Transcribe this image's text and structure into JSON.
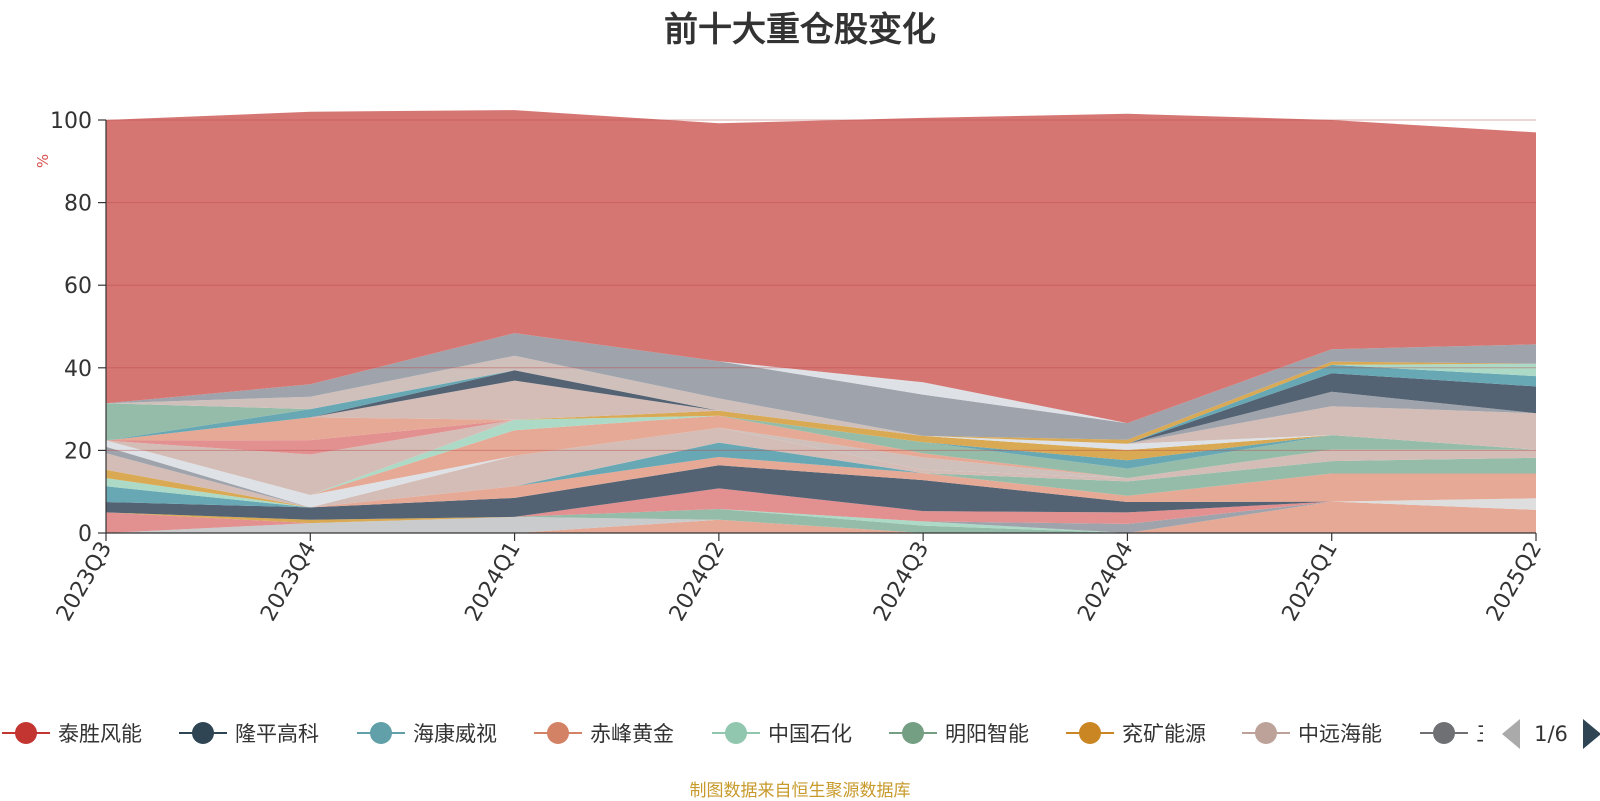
{
  "title": "前十大重仓股变化",
  "source_note": "制图数据来自恒生聚源数据库",
  "legend_pager": "1/6",
  "chart_data": {
    "type": "area",
    "stacked": true,
    "ylabel": "%",
    "ylim": [
      0,
      100
    ],
    "yticks": [
      0,
      20,
      40,
      60,
      80,
      100
    ],
    "grid": true,
    "legend_position": "bottom",
    "x": [
      "2023Q3",
      "2023Q4",
      "2024Q1",
      "2024Q2",
      "2024Q3",
      "2024Q4",
      "2025Q1",
      "2025Q2"
    ],
    "legend_visible": [
      "泰胜风能",
      "隆平高科",
      "海康威视",
      "赤峰黄金",
      "中国石化",
      "明阳智能",
      "兖矿能源",
      "中远海能",
      "三"
    ],
    "series": [
      {
        "name": "",
        "color": "#e4a48f",
        "values": [
          0,
          0,
          0,
          3.2,
          0,
          0,
          7.6,
          5.6
        ]
      },
      {
        "name": "",
        "color": "#dcdcdc",
        "values": [
          0,
          0,
          0,
          0,
          0,
          0,
          0,
          2.8
        ]
      },
      {
        "name": "",
        "color": "#c7c8c9",
        "values": [
          0,
          2.4,
          3.9,
          0,
          0,
          0,
          0,
          0
        ]
      },
      {
        "name": "",
        "color": "#8fb8a4",
        "values": [
          0,
          0,
          0,
          2.6,
          1.8,
          0,
          0,
          0
        ]
      },
      {
        "name": "",
        "color": "#a8d8c4",
        "values": [
          0,
          0,
          0,
          0,
          1.0,
          0,
          0,
          0
        ]
      },
      {
        "name": "",
        "color": "#9a9ea6",
        "values": [
          0,
          0,
          0,
          0,
          0,
          2.2,
          0,
          0
        ]
      },
      {
        "name": "",
        "color": "#e08a8a",
        "values": [
          5.0,
          0,
          0,
          5.0,
          2.5,
          2.8,
          0,
          0
        ]
      },
      {
        "name": "",
        "color": "#d8a44a",
        "values": [
          0,
          0.8,
          0,
          0,
          0,
          0,
          0,
          0
        ]
      },
      {
        "name": "",
        "color": "#4b5b6d",
        "values": [
          2.5,
          3.0,
          4.6,
          5.6,
          7.5,
          2.5,
          0,
          0
        ]
      },
      {
        "name": "",
        "color": "#e4a48f",
        "values": [
          0,
          0,
          2.8,
          2.0,
          1.7,
          1.5,
          6.8,
          6.0
        ]
      },
      {
        "name": "",
        "color": "#5fa3b0",
        "values": [
          3.8,
          0,
          0,
          3.5,
          0,
          0,
          0,
          0
        ]
      },
      {
        "name": "",
        "color": "#a8d8c4",
        "values": [
          2.0,
          0,
          0,
          0,
          0,
          0,
          0,
          0
        ]
      },
      {
        "name": "",
        "color": "#d8a44a",
        "values": [
          2.0,
          0,
          0,
          0,
          0,
          0,
          0,
          0
        ]
      },
      {
        "name": "",
        "color": "#8fb8a4",
        "values": [
          0,
          0,
          0,
          0,
          0,
          3.5,
          3.0,
          3.8
        ]
      },
      {
        "name": "",
        "color": "#d2b9b3",
        "values": [
          4.0,
          0,
          7.4,
          3.6,
          0.8,
          0.8,
          2.8,
          2.0
        ]
      },
      {
        "name": "",
        "color": "#ccbdb8",
        "values": [
          0,
          0,
          0,
          0,
          3.0,
          0,
          0,
          0
        ]
      },
      {
        "name": "",
        "color": "#9a9ea6",
        "values": [
          1.6,
          0,
          0,
          0,
          0,
          0,
          0,
          0
        ]
      },
      {
        "name": "",
        "color": "#dce0e6",
        "values": [
          1.5,
          3.0,
          0,
          0,
          0,
          0,
          0,
          0
        ]
      },
      {
        "name": "",
        "color": "#e4a48f",
        "values": [
          0,
          0,
          6.2,
          2.9,
          1.0,
          0,
          0,
          0
        ]
      },
      {
        "name": "",
        "color": "#a8d8c4",
        "values": [
          0,
          0,
          2.5,
          0,
          0,
          0,
          0,
          0
        ]
      },
      {
        "name": "",
        "color": "#d2b9b3",
        "values": [
          0,
          9.8,
          0,
          0,
          0,
          0,
          0,
          0
        ]
      },
      {
        "name": "",
        "color": "#8fb8a4",
        "values": [
          0,
          0,
          0,
          0,
          2.7,
          2.3,
          3.5,
          0
        ]
      },
      {
        "name": "",
        "color": "#e08a8a",
        "values": [
          0,
          3.5,
          0,
          0,
          0,
          0,
          0,
          0
        ]
      },
      {
        "name": "",
        "color": "#e4a48f",
        "values": [
          0,
          5.5,
          0,
          0,
          0,
          0,
          0,
          0
        ]
      },
      {
        "name": "",
        "color": "#5fa3b0",
        "values": [
          0,
          0,
          0,
          0,
          0,
          2.0,
          0,
          0
        ]
      },
      {
        "name": "",
        "color": "#d8a44a",
        "values": [
          0,
          0,
          0,
          1.2,
          1.5,
          2.5,
          0,
          0
        ]
      },
      {
        "name": "",
        "color": "#dce0e6",
        "values": [
          0,
          0,
          0,
          0,
          0,
          1.5,
          0,
          0
        ]
      },
      {
        "name": "",
        "color": "#d2b9b3",
        "values": [
          0,
          0,
          9.5,
          0,
          0,
          0,
          7.0,
          8.8
        ]
      },
      {
        "name": "",
        "color": "#9a9ea6",
        "values": [
          0,
          0,
          0,
          0,
          0,
          0,
          3.5,
          0
        ]
      },
      {
        "name": "",
        "color": "#4b5b6d",
        "values": [
          0,
          0,
          2.5,
          0,
          0,
          0,
          4.5,
          6.5
        ]
      },
      {
        "name": "",
        "color": "#5fa3b0",
        "values": [
          0,
          2.0,
          0,
          0,
          0,
          0,
          2.0,
          2.5
        ]
      },
      {
        "name": "",
        "color": "#a8d8c4",
        "values": [
          0,
          0,
          0,
          0,
          0,
          0,
          0,
          3.0
        ]
      },
      {
        "name": "",
        "color": "#d8a44a",
        "values": [
          0,
          0,
          0,
          0,
          0,
          1.0,
          0.8,
          0
        ]
      },
      {
        "name": "",
        "color": "#8fb8a4",
        "values": [
          9.0,
          0,
          0,
          0,
          0,
          0,
          0,
          0
        ]
      },
      {
        "name": "",
        "color": "#ccbdb8",
        "values": [
          0,
          3.0,
          3.5,
          3.0,
          0,
          0,
          0,
          0
        ]
      },
      {
        "name": "",
        "color": "#9a9ea6",
        "values": [
          0,
          3.0,
          5.5,
          9.0,
          10.0,
          4.0,
          3.0,
          4.7
        ]
      },
      {
        "name": "",
        "color": "#dce0e6",
        "values": [
          0,
          0,
          0,
          0,
          3.0,
          0,
          0,
          0
        ]
      },
      {
        "name": "",
        "color": "#d46f6c",
        "values": [
          68.6,
          66.0,
          54.0,
          57.6,
          64.0,
          74.9,
          55.5,
          51.3
        ]
      }
    ]
  },
  "legend_colors": [
    "#c23531",
    "#2f4554",
    "#61a0a8",
    "#d48265",
    "#91c7ae",
    "#749f83",
    "#ca8622",
    "#bda29a",
    "#6e7074"
  ]
}
